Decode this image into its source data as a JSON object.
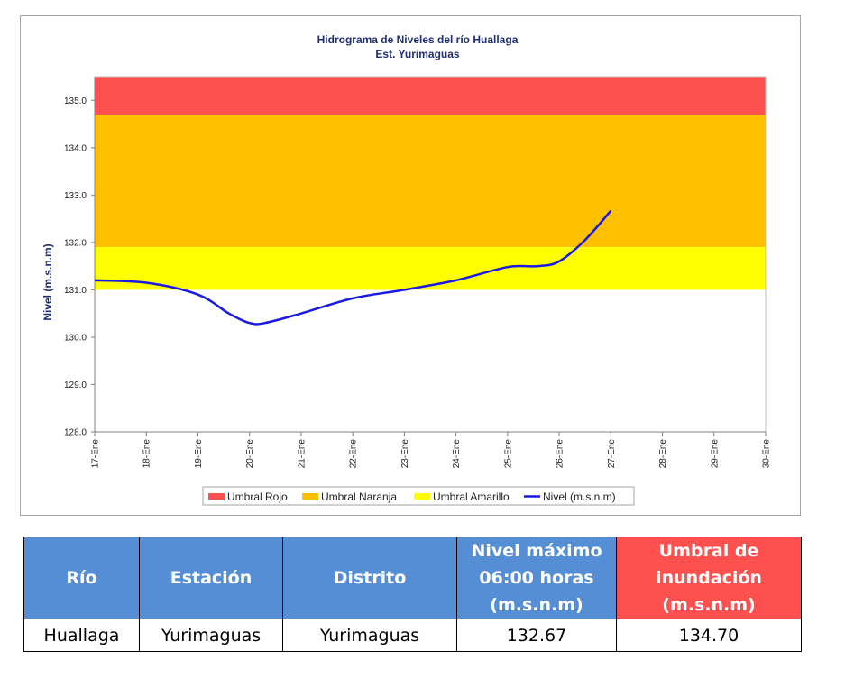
{
  "chart_data": {
    "type": "line",
    "title": "Hidrograma de Niveles del río Huallaga",
    "subtitle": "Est. Yurimaguas",
    "xlabel": "",
    "ylabel": "Nivel (m.s.n.m)",
    "categories": [
      "17-Ene",
      "18-Ene",
      "19-Ene",
      "20-Ene",
      "21-Ene",
      "22-Ene",
      "23-Ene",
      "24-Ene",
      "25-Ene",
      "26-Ene",
      "27-Ene",
      "28-Ene",
      "29-Ene",
      "30-Ene"
    ],
    "ylim": [
      128.0,
      135.5
    ],
    "yticks": [
      "128.0",
      "129.0",
      "130.0",
      "131.0",
      "132.0",
      "133.0",
      "134.0",
      "135.0"
    ],
    "thresholds": [
      {
        "name": "Umbral Rojo",
        "from": 134.7,
        "to": 135.5,
        "color": "#ff5050"
      },
      {
        "name": "Umbral Naranja",
        "from": 131.9,
        "to": 134.7,
        "color": "#ffc000"
      },
      {
        "name": "Umbral Amarillo",
        "from": 131.0,
        "to": 131.9,
        "color": "#ffff00"
      }
    ],
    "series": [
      {
        "name": "Nivel (m.s.n.m)",
        "color": "#1a1ae6",
        "x": [
          0,
          1,
          2,
          2.6,
          3,
          3.3,
          4,
          5,
          6,
          7,
          8,
          8.6,
          9,
          9.5,
          10
        ],
        "values": [
          131.2,
          131.15,
          130.9,
          130.5,
          130.3,
          130.3,
          130.5,
          130.82,
          131.0,
          131.2,
          131.48,
          131.5,
          131.6,
          132.05,
          132.67
        ]
      }
    ],
    "legend_position": "bottom",
    "grid": false
  },
  "table": {
    "headers": [
      "Río",
      "Estación",
      "Distrito",
      "Nivel máximo 06:00 horas (m.s.n.m)",
      "Umbral de inundación (m.s.n.m)"
    ],
    "row": [
      "Huallaga",
      "Yurimaguas",
      "Yurimaguas",
      "132.67",
      "134.70"
    ]
  }
}
